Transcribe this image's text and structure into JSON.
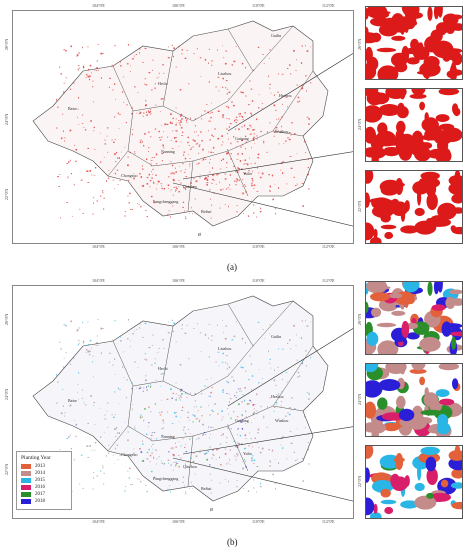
{
  "figure_a": {
    "caption": "(a)",
    "lon_ticks": [
      "104°0'E",
      "106°0'E",
      "110°0'E",
      "112°0'E"
    ],
    "lat_ticks": [
      "26°0'N",
      "24°0'N",
      "22°0'N"
    ],
    "cities": [
      "Guilin",
      "Hechi",
      "Liuzhou",
      "Baise",
      "Hezhou",
      "Nanning",
      "Guigang",
      "Wuzhou",
      "Chongzuo",
      "Qinzhou",
      "Yulin",
      "Fangchenggang",
      "Beihai"
    ],
    "inset_lat_labels": [
      "26°0'N",
      "24°0'N",
      "22°0'N"
    ],
    "north_symbol": "ø",
    "fill_color": "#dd1a1a"
  },
  "figure_b": {
    "caption": "(b)",
    "lon_ticks": [
      "104°0'E",
      "106°0'E",
      "110°0'E",
      "112°0'E"
    ],
    "lat_ticks": [
      "26°0'N",
      "24°0'N",
      "22°0'N"
    ],
    "cities": [
      "Guilin",
      "Hechi",
      "Liuzhou",
      "Baise",
      "Hezhou",
      "Nanning",
      "Guigang",
      "Wuzhou",
      "Chongzuo",
      "Qinzhou",
      "Yulin",
      "Fangchenggang",
      "Beihai"
    ],
    "inset_lat_labels": [
      "26°0'N",
      "24°0'N",
      "22°0'N"
    ],
    "north_symbol": "ø",
    "legend": {
      "title": "Planting Year",
      "items": [
        {
          "label": "2013",
          "color": "#e2603a"
        },
        {
          "label": "2014",
          "color": "#c48b8b"
        },
        {
          "label": "2015",
          "color": "#29b6e6"
        },
        {
          "label": "2016",
          "color": "#d91e6a"
        },
        {
          "label": "2017",
          "color": "#2a8f2a"
        },
        {
          "label": "2018",
          "color": "#2a1fd6"
        }
      ]
    }
  }
}
